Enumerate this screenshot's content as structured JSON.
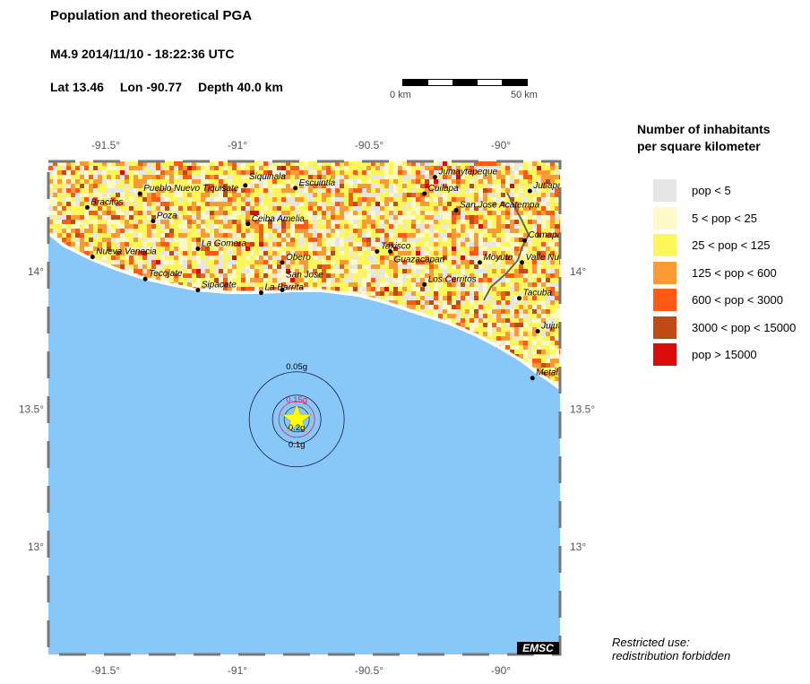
{
  "header": {
    "title": "Population and theoretical PGA",
    "event": "M4.9  2014/11/10 - 18:22:36 UTC",
    "lat": "Lat 13.46",
    "lon": "Lon -90.77",
    "depth": "Depth  40.0 km"
  },
  "scalebar": {
    "start_label": "0 km",
    "end_label": "50 km"
  },
  "map": {
    "lon_range": [
      -91.72,
      -89.78
    ],
    "lat_range": [
      12.6,
      14.4
    ],
    "lon_ticks": [
      {
        "v": -91.5,
        "label": "-91.5°"
      },
      {
        "v": -91,
        "label": "-91°"
      },
      {
        "v": -90.5,
        "label": "-90.5°"
      },
      {
        "v": -90,
        "label": "-90°"
      }
    ],
    "lat_ticks": [
      {
        "v": 14,
        "label": "14°"
      },
      {
        "v": 13.5,
        "label": "13.5°"
      },
      {
        "v": 13,
        "label": "13°"
      }
    ],
    "sea_color": "#87c8f8",
    "epicenter": {
      "lon": -90.775,
      "lat": 13.46,
      "icon": "star-icon",
      "color": "#ffff00"
    },
    "pga_contours": [
      {
        "label": "0.05g",
        "color": "#1a1a40"
      },
      {
        "label": "0.1g",
        "color": "#1a1a40"
      },
      {
        "label": "0.15g",
        "color": "#dd2266"
      },
      {
        "label": "0.2g",
        "color": "#333333"
      }
    ],
    "cities": [
      {
        "name": "Bracitos",
        "lon": -91.57,
        "lat": 14.23
      },
      {
        "name": "Pueblo Nuevo Tiquisate",
        "lon": -91.37,
        "lat": 14.28
      },
      {
        "name": "Siquinala",
        "lon": -90.97,
        "lat": 14.31
      },
      {
        "name": "Escuintla",
        "lon": -90.78,
        "lat": 14.3
      },
      {
        "name": "Poza",
        "lon": -91.32,
        "lat": 14.18
      },
      {
        "name": "Ceiba Amelia",
        "lon": -90.96,
        "lat": 14.17
      },
      {
        "name": "La Gomera",
        "lon": -91.15,
        "lat": 14.08
      },
      {
        "name": "Obero",
        "lon": -90.83,
        "lat": 14.03
      },
      {
        "name": "Nueva Venecia",
        "lon": -91.55,
        "lat": 14.05
      },
      {
        "name": "Tecojate",
        "lon": -91.35,
        "lat": 13.97
      },
      {
        "name": "Sipacate",
        "lon": -91.15,
        "lat": 13.93
      },
      {
        "name": "La Barrita",
        "lon": -90.91,
        "lat": 13.92
      },
      {
        "name": "San Jose",
        "lon": -90.83,
        "lat": 13.93
      },
      {
        "name": "Jumaytepeque",
        "lon": -90.25,
        "lat": 14.34
      },
      {
        "name": "Cuilapa",
        "lon": -90.29,
        "lat": 14.28
      },
      {
        "name": "San Jose Acatempa",
        "lon": -90.17,
        "lat": 14.22
      },
      {
        "name": "Taxisco",
        "lon": -90.47,
        "lat": 14.07
      },
      {
        "name": "Guazacapan",
        "lon": -90.42,
        "lat": 14.07
      },
      {
        "name": "Los Cerritos",
        "lon": -90.29,
        "lat": 13.95
      },
      {
        "name": "Moyuta",
        "lon": -90.08,
        "lat": 14.03
      },
      {
        "name": "Jutiapa",
        "lon": -89.89,
        "lat": 14.29
      },
      {
        "name": "Comapa",
        "lon": -89.91,
        "lat": 14.11
      },
      {
        "name": "Valle Nuevo",
        "lon": -89.92,
        "lat": 14.03
      },
      {
        "name": "Tacuba",
        "lon": -89.93,
        "lat": 13.9
      },
      {
        "name": "Jujutla",
        "lon": -89.86,
        "lat": 13.78
      },
      {
        "name": "Metalio",
        "lon": -89.88,
        "lat": 13.61
      }
    ],
    "watermark": "EMSC"
  },
  "legend": {
    "title_line1": "Number of inhabitants",
    "title_line2": "per square kilometer",
    "items": [
      {
        "label": "pop < 5",
        "color": "#e6e6e6"
      },
      {
        "label": "5 < pop < 25",
        "color": "#fffac8"
      },
      {
        "label": "25 < pop < 125",
        "color": "#fdf75a"
      },
      {
        "label": "125 < pop < 600",
        "color": "#fd9a33"
      },
      {
        "label": "600 < pop < 3000",
        "color": "#ff5a14"
      },
      {
        "label": "3000 < pop < 15000",
        "color": "#c04a14"
      },
      {
        "label": "pop > 15000",
        "color": "#dc0c0c"
      }
    ]
  },
  "note": {
    "line1": "Restricted use:",
    "line2": "redistribution forbidden"
  }
}
